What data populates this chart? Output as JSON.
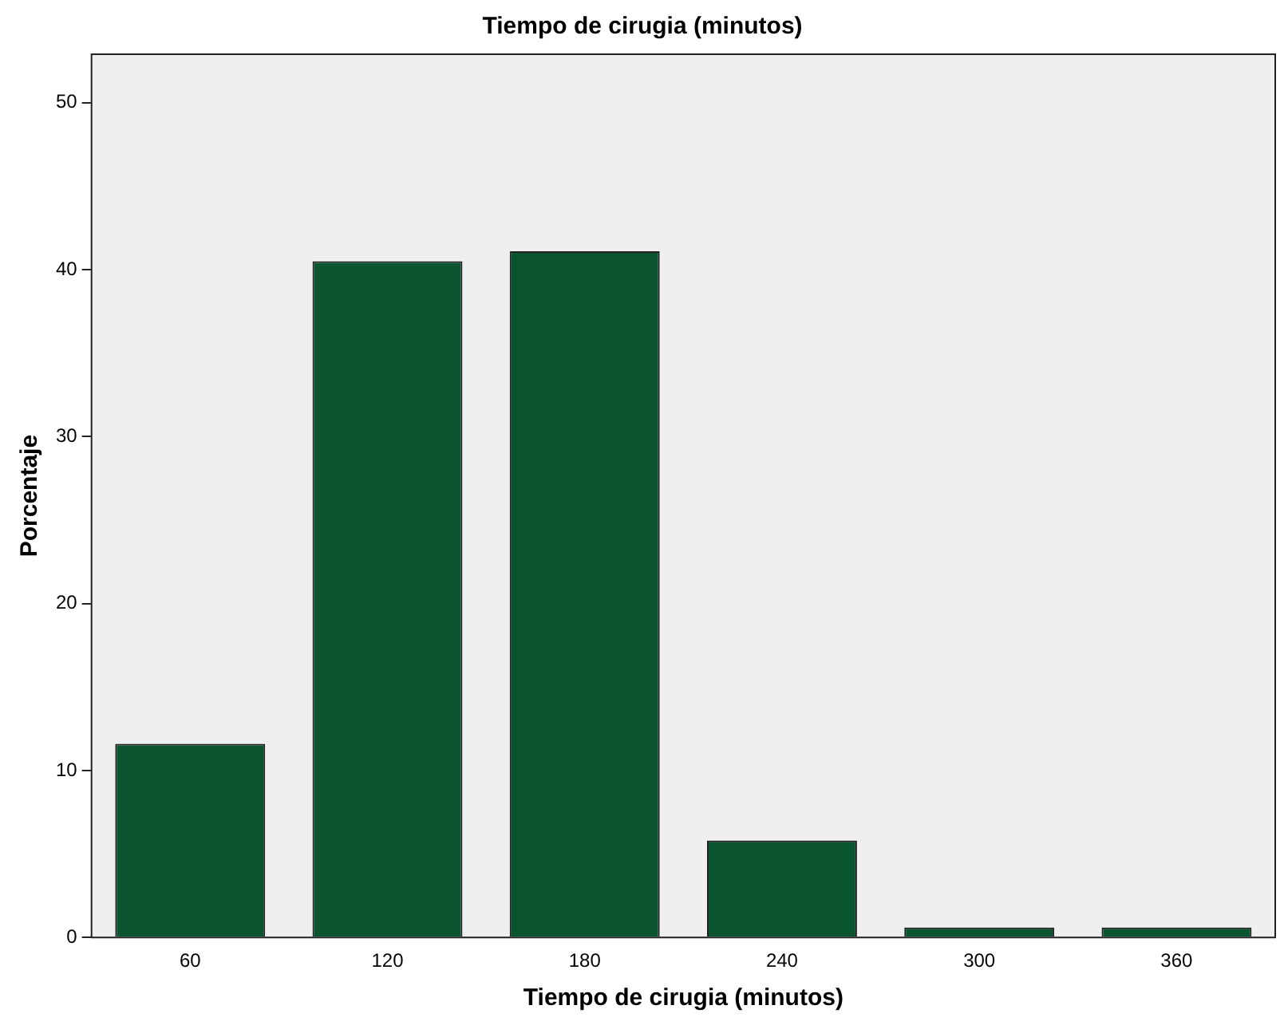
{
  "chart_data": {
    "type": "bar",
    "title": "Tiempo de cirugia (minutos)",
    "xlabel": "Tiempo de cirugia (minutos)",
    "ylabel": "Porcentaje",
    "categories": [
      "60",
      "120",
      "180",
      "240",
      "300",
      "360"
    ],
    "values": [
      11.6,
      40.5,
      41.1,
      5.8,
      0.6,
      0.6
    ],
    "color": "#0b5430",
    "ylim": [
      0,
      52.9
    ],
    "yticks": [
      0,
      10,
      20,
      30,
      40,
      50
    ],
    "grid": false,
    "legend": false
  }
}
